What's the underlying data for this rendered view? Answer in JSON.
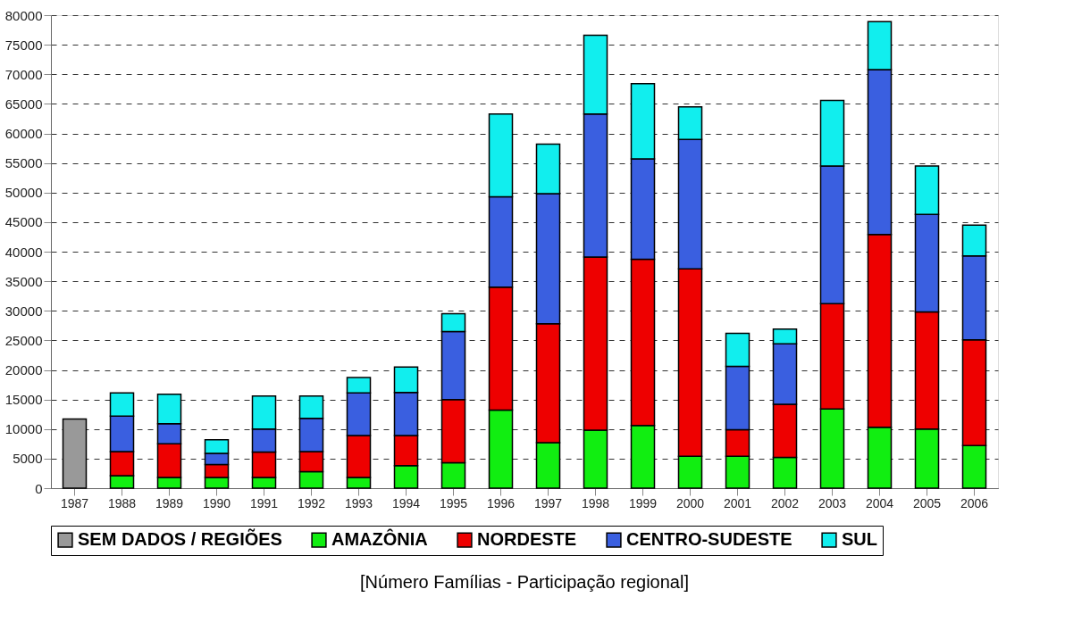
{
  "chart_data": {
    "type": "bar",
    "stacked": true,
    "categories": [
      "1987",
      "1988",
      "1989",
      "1990",
      "1991",
      "1992",
      "1993",
      "1994",
      "1995",
      "1996",
      "1997",
      "1998",
      "1999",
      "2000",
      "2001",
      "2002",
      "2003",
      "2004",
      "2005",
      "2006"
    ],
    "series": [
      {
        "name": "SEM DADOS / REGIÕES",
        "color": "#999999",
        "values": [
          11700,
          null,
          null,
          null,
          null,
          null,
          null,
          null,
          null,
          null,
          null,
          null,
          null,
          null,
          null,
          null,
          null,
          null,
          null,
          null
        ]
      },
      {
        "name": "AMAZÔNIA",
        "color": "#11ee11",
        "values": [
          null,
          2100,
          1800,
          1800,
          1800,
          2800,
          1800,
          3800,
          4300,
          13200,
          7700,
          9800,
          10600,
          5400,
          5400,
          5200,
          13400,
          10300,
          10000,
          7200
        ]
      },
      {
        "name": "NORDESTE",
        "color": "#ee0000",
        "values": [
          null,
          4100,
          5700,
          2200,
          4300,
          3400,
          7100,
          5100,
          10700,
          20800,
          20100,
          29300,
          28100,
          31700,
          4500,
          9000,
          17800,
          32600,
          19800,
          17900
        ]
      },
      {
        "name": "CENTRO-SUDESTE",
        "color": "#3a5fe0",
        "values": [
          null,
          6000,
          3400,
          1900,
          3900,
          5600,
          7200,
          7300,
          11500,
          15300,
          22000,
          24200,
          17000,
          21900,
          10700,
          10200,
          23300,
          27900,
          16500,
          14200
        ]
      },
      {
        "name": "SUL",
        "color": "#11eeee",
        "values": [
          null,
          3900,
          5000,
          2300,
          5600,
          3800,
          2600,
          4300,
          3000,
          14000,
          8400,
          13300,
          12700,
          5500,
          5600,
          2500,
          11100,
          8100,
          8200,
          5200
        ]
      }
    ],
    "ylim": [
      0,
      80000
    ],
    "yticks": [
      0,
      5000,
      10000,
      15000,
      20000,
      25000,
      30000,
      35000,
      40000,
      45000,
      50000,
      55000,
      60000,
      65000,
      70000,
      75000,
      80000
    ],
    "grid": "y",
    "legend": "bottom",
    "annotations": [
      "[Número Famílias - Participação regional]"
    ]
  }
}
